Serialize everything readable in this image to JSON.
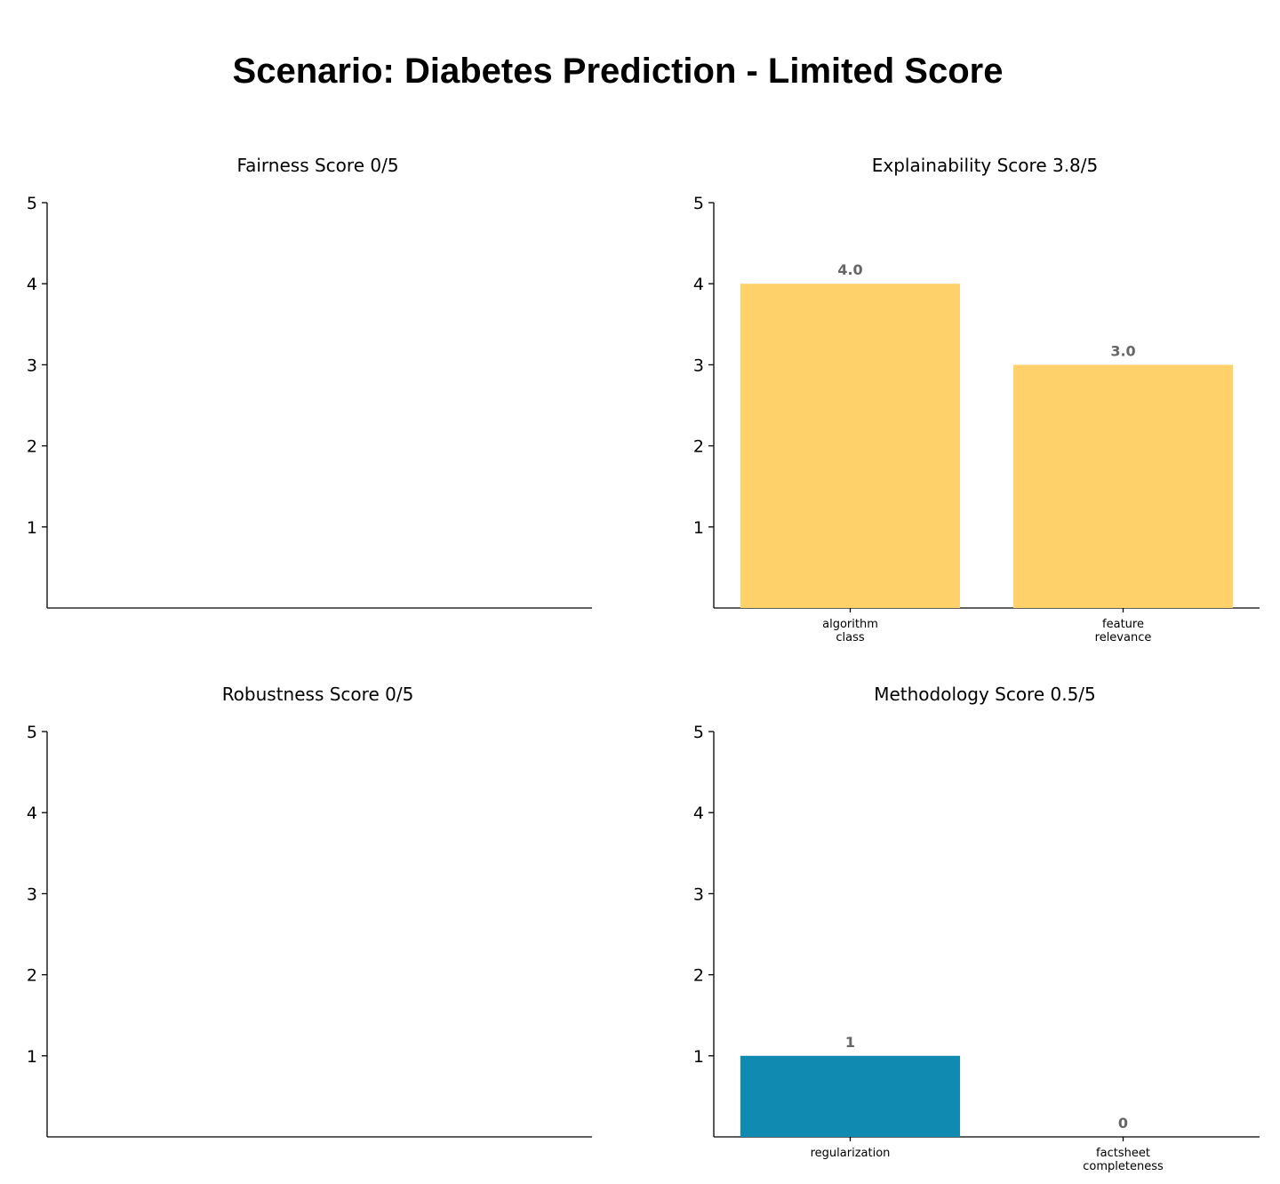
{
  "title": "Scenario: Diabetes Prediction - Limited Score",
  "chart_data": [
    {
      "type": "bar",
      "title": "Fairness Score 0/5",
      "categories": [],
      "values": [],
      "category_labels": [],
      "value_labels": [],
      "ylim": [
        0,
        5
      ],
      "yticks": [
        1,
        2,
        3,
        4,
        5
      ],
      "bar_color": "#ffd16b",
      "grid": false
    },
    {
      "type": "bar",
      "title": "Explainability Score 3.8/5",
      "categories": [
        "algorithm_class",
        "feature_relevance"
      ],
      "category_labels": [
        [
          "algorithm",
          "class"
        ],
        [
          "feature",
          "relevance"
        ]
      ],
      "values": [
        4.0,
        3.0
      ],
      "value_labels": [
        "4.0",
        "3.0"
      ],
      "ylim": [
        0,
        5
      ],
      "yticks": [
        1,
        2,
        3,
        4,
        5
      ],
      "bar_color": "#ffd16b",
      "grid": false
    },
    {
      "type": "bar",
      "title": "Robustness Score 0/5",
      "categories": [],
      "values": [],
      "category_labels": [],
      "value_labels": [],
      "ylim": [
        0,
        5
      ],
      "yticks": [
        1,
        2,
        3,
        4,
        5
      ],
      "bar_color": "#118ab2",
      "grid": false
    },
    {
      "type": "bar",
      "title": "Methodology Score 0.5/5",
      "categories": [
        "regularization",
        "factsheet_completeness"
      ],
      "category_labels": [
        [
          "regularization"
        ],
        [
          "factsheet",
          "completeness"
        ]
      ],
      "values": [
        1,
        0
      ],
      "value_labels": [
        "1",
        "0"
      ],
      "ylim": [
        0,
        5
      ],
      "yticks": [
        1,
        2,
        3,
        4,
        5
      ],
      "bar_color": "#118ab2",
      "grid": false
    }
  ]
}
